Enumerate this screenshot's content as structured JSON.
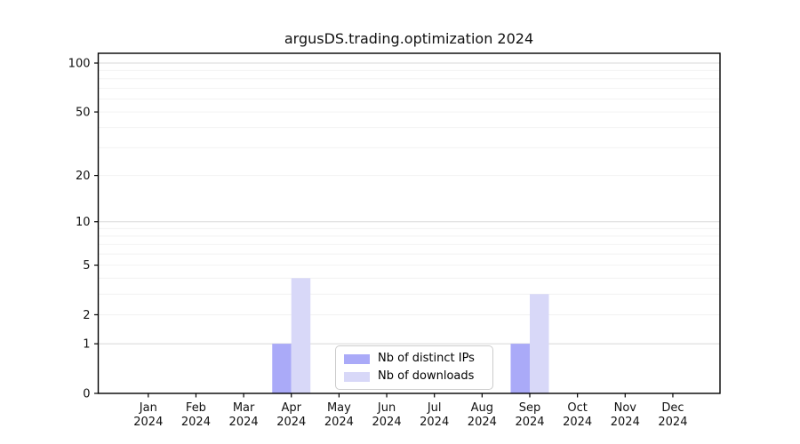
{
  "chart_data": {
    "type": "bar",
    "title": "argusDS.trading.optimization 2024",
    "categories": [
      "Jan",
      "Feb",
      "Mar",
      "Apr",
      "May",
      "Jun",
      "Jul",
      "Aug",
      "Sep",
      "Oct",
      "Nov",
      "Dec"
    ],
    "year_label": "2024",
    "series": [
      {
        "name": "Nb of distinct IPs",
        "color": "#aaaaf8",
        "values": [
          0,
          0,
          0,
          1,
          0,
          0,
          0,
          0,
          1,
          0,
          0,
          0
        ]
      },
      {
        "name": "Nb of downloads",
        "color": "#d8d8f8",
        "values": [
          0,
          0,
          0,
          4,
          0,
          0,
          0,
          0,
          3,
          0,
          0,
          0
        ]
      }
    ],
    "xlabel": "",
    "ylabel": "",
    "y_ticks": [
      0,
      1,
      2,
      5,
      10,
      20,
      50,
      100
    ],
    "y_scale": "log1p",
    "ylim": [
      0,
      115
    ],
    "grid": "horizontal",
    "legend_position": "inside-bottom-center",
    "colors": {
      "axis": "#000000",
      "grid_major": "#d8d8d8",
      "grid_minor": "#f2f2f2",
      "text": "#111111",
      "legend_border": "#cccccc"
    }
  }
}
